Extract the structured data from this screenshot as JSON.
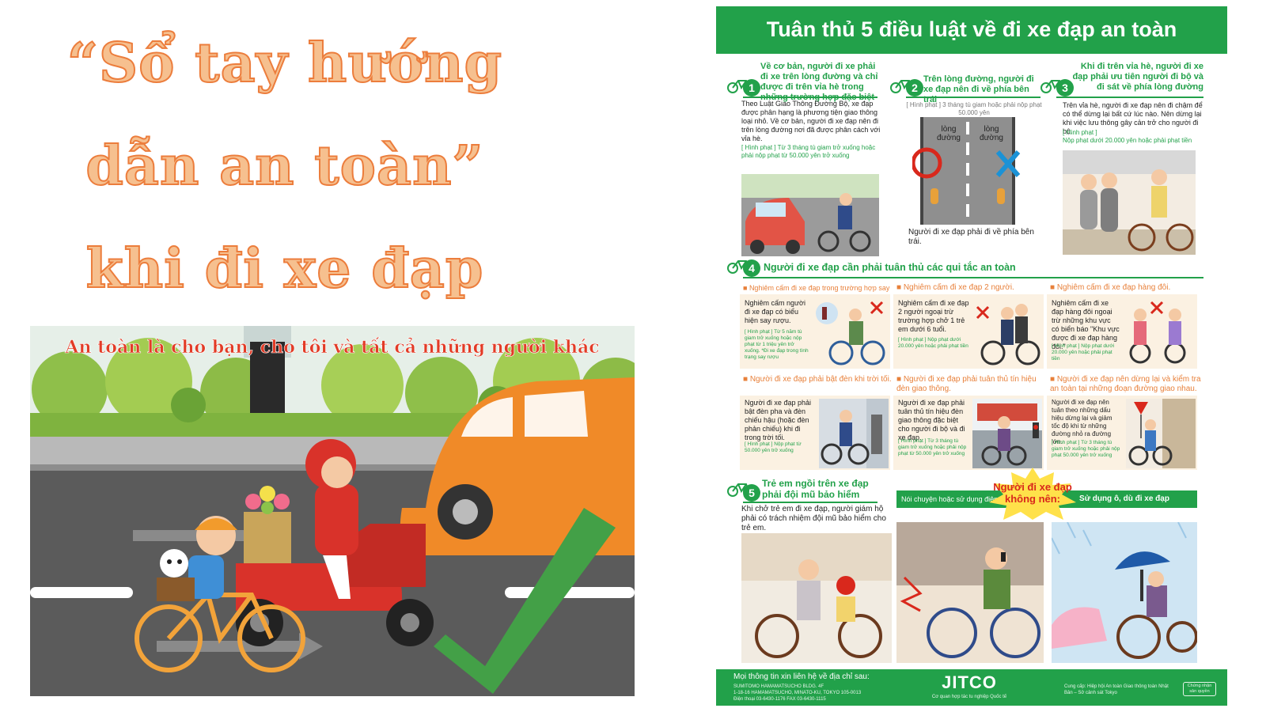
{
  "cover": {
    "title_line1": "“Sổ tay hướng",
    "title_line2": "dẫn an toàn”",
    "title_line3": "khi đi xe đạp",
    "slogan": "An toàn là cho bạn, cho tôi và tất cả những người khác",
    "colors": {
      "title_fill": "#f6c08f",
      "title_stroke": "#ec7d3c",
      "slogan": "#e23b26"
    }
  },
  "poster": {
    "title": "Tuân thủ 5 điều luật về đi xe đạp an toàn",
    "accent_color": "#22a14a",
    "rule1": {
      "num": "1",
      "heading": "Về cơ bản, người đi xe phải đi xe trên lòng đường và chỉ được đi trên vỉa hè trong những trường hợp đặc biệt",
      "body": "Theo Luật Giao Thông Đường Bộ, xe đạp được phân hạng là phương tiện giao thông loại nhỏ. Về cơ bản, người đi xe đạp nên đi trên lòng đường nơi đã được phân cách với vỉa hè.",
      "penalty": "[ Hình phạt ] Từ 3 tháng tù giam trở xuống hoặc phải nộp phạt từ 50.000 yên trở xuống"
    },
    "rule2": {
      "num": "2",
      "heading": "Trên lòng đường, người đi xe đạp nên đi về phía bên trái",
      "penalty": "[ Hình phạt ] 3 tháng tù giam hoặc phải nộp phạt 50.000 yên",
      "lane_label": "lòng đường",
      "caption": "Người đi xe đạp phải đi về phía bên trái."
    },
    "rule3": {
      "num": "3",
      "heading": "Khi đi trên vỉa hè, người đi xe đạp phải ưu tiên người đi bộ và đi sát về phía lòng đường",
      "body": "Trên vỉa hè, người đi xe đạp nên đi chậm để có thể dừng lại bất cứ lúc nào. Nên dừng lại khi việc lưu thông gây cản trở cho người đi bộ.",
      "penalty_label": "[ Hình phạt ]",
      "penalty": "Nộp phạt dưới 20.000 yên hoặc phải phạt tiền"
    },
    "rule4": {
      "num": "4",
      "heading": "Người đi xe đạp cần phải tuân thủ các qui tắc an toàn",
      "items": [
        {
          "title": "Nghiêm cấm đi xe đạp trong trường hợp say rượu.",
          "body": "Nghiêm cấm người đi xe đạp có biểu hiện say rượu.",
          "penalty": "[ Hình phạt ] Từ 5 năm tù giam trở xuống hoặc nộp phạt từ 1 triệu yên trở xuống. *Đi xe đạp trong tình trạng say rượu"
        },
        {
          "title": "Nghiêm cấm đi xe đạp 2 người.",
          "body": "Nghiêm cấm đi xe đạp 2 người ngoại trừ trường hợp chở 1 trẻ em dưới 6 tuổi.",
          "penalty": "[ Hình phạt ] Nộp phạt dưới 20.000 yên hoặc phải phạt tiền"
        },
        {
          "title": "Nghiêm cấm đi xe đạp hàng đôi.",
          "body": "Nghiêm cấm đi xe đạp hàng đôi ngoại trừ những khu vực có biển báo \"Khu vực được đi xe đạp hàng đôi.\"",
          "penalty": "[ Hình phạt ] Nộp phạt dưới 20.000 yên hoặc phải phạt tiền"
        },
        {
          "title": "Người đi xe đạp phải bật đèn khi trời tối.",
          "body": "Người đi xe đạp phải bật đèn pha và đèn chiếu hậu (hoặc đèn phản chiếu) khi đi trong trời tối.",
          "penalty": "[ Hình phạt ] Nộp phạt từ 50.000 yên trở xuống"
        },
        {
          "title": "Người đi xe đạp phải tuân thủ tín hiệu đèn giao thông.",
          "body": "Người đi xe đạp phải tuân thủ tín hiệu đèn giao thông đặc biệt cho người đi bộ và đi xe đạp.",
          "penalty": "[ Hình phạt ] Từ 3 tháng tù giam trở xuống hoặc phải nộp phạt từ 50.000 yên trở xuống"
        },
        {
          "title": "Người đi xe đạp nên dừng lại và kiểm tra an toàn tại những đoạn đường giao nhau.",
          "body": "Người đi xe đạp nên tuân theo những dấu hiệu dừng lại và giảm tốc độ khi từ những đường nhỏ ra đường lớn.",
          "penalty": "[ Hình phạt ] Từ 3 tháng tù giam trở xuống hoặc phải nộp phạt 50.000 yên trở xuống"
        }
      ]
    },
    "rule5": {
      "num": "5",
      "heading": "Trẻ em ngồi trên xe đạp phải đội mũ bảo hiểm",
      "body": "Khi chở trẻ em đi xe đạp, người giám hộ phải có trách nhiệm đội mũ bảo hiểm cho trẻ em."
    },
    "dont": {
      "burst": "Người đi xe đạp không nên:",
      "phone": "Nói chuyện hoặc sử dụng điện thoại di động",
      "umbrella": "Sử dụng ô, dù đi xe đạp"
    },
    "footer": {
      "contact": "Mọi thông tin xin liên hệ về địa chỉ sau:",
      "building": "SUMITOMO HAMAMATSUCHO BLDG. 4F",
      "address": "1-18-16 HAMAMATSUCHO, MINATO-KU, TOKYO 105-0013",
      "phone": "Điện thoại 03-6430-1176     FAX 03-6430-1115",
      "logo": "JITCO",
      "logo_sub": "Cơ quan hợp tác tu nghiệp Quốc tế",
      "provider": "Cung cấp: Hiệp hội An toàn Giao thông toàn Nhật Bản – Sở cảnh sát Tokyo",
      "stamp": "Chứng nhận sản quyền"
    }
  }
}
